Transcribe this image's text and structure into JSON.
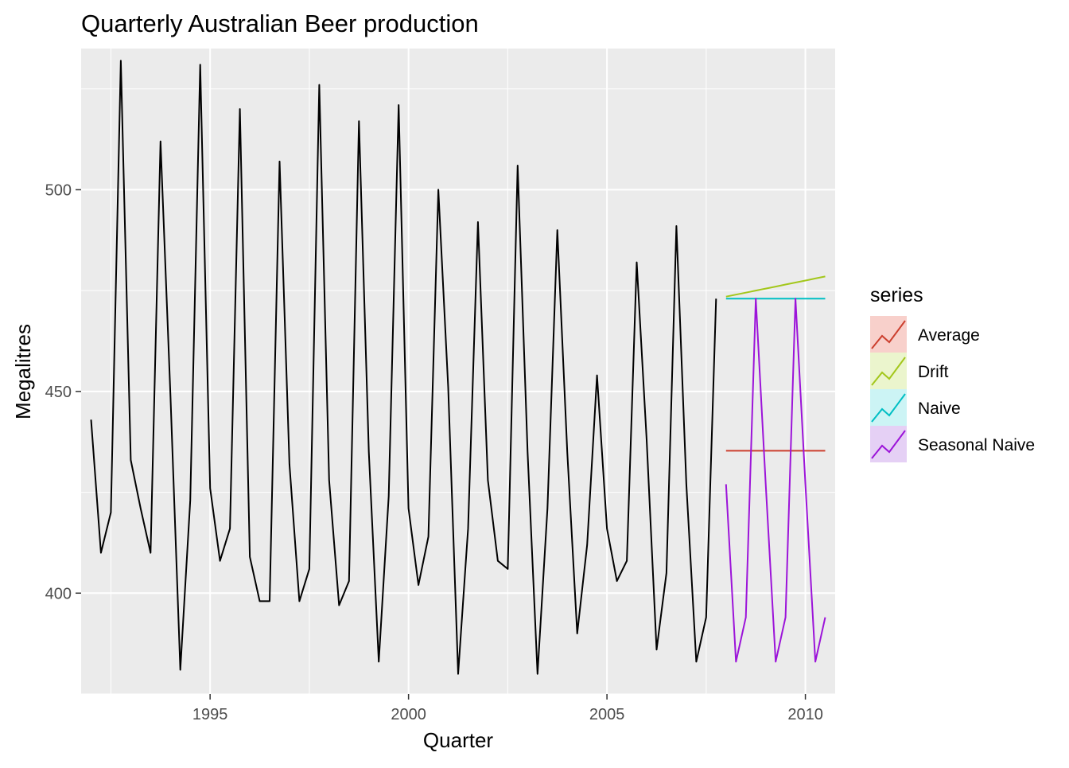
{
  "chart_data": {
    "type": "line",
    "title": "Quarterly Australian Beer production",
    "xlabel": "Quarter",
    "ylabel": "Megalitres",
    "xlim": [
      1991.75,
      2010.75
    ],
    "ylim": [
      375,
      535
    ],
    "x_ticks": [
      1995,
      2000,
      2005,
      2010
    ],
    "y_ticks": [
      400,
      450,
      500
    ],
    "grid": true,
    "background": "#EBEBEB",
    "legend": {
      "title": "series",
      "position": "right",
      "entries": [
        {
          "label": "Average",
          "color": "#CC3F2E",
          "fill": "#F8D0CB"
        },
        {
          "label": "Drift",
          "color": "#A3C71B",
          "fill": "#EBF5CD"
        },
        {
          "label": "Naive",
          "color": "#00BFC4",
          "fill": "#CCF4F5"
        },
        {
          "label": "Seasonal Naive",
          "color": "#9C14D9",
          "fill": "#E5D0F5"
        }
      ]
    },
    "observed": {
      "color": "#000000",
      "start": 1992.0,
      "step": 0.25,
      "values": [
        443,
        410,
        420,
        532,
        433,
        421,
        410,
        512,
        449,
        381,
        423,
        531,
        426,
        408,
        416,
        520,
        409,
        398,
        398,
        507,
        432,
        398,
        406,
        526,
        428,
        397,
        403,
        517,
        435,
        383,
        424,
        521,
        421,
        402,
        414,
        500,
        451,
        380,
        416,
        492,
        428,
        408,
        406,
        506,
        435,
        380,
        421,
        490,
        435,
        390,
        412,
        454,
        416,
        403,
        408,
        482,
        438,
        386,
        405,
        491,
        427,
        383,
        394,
        473
      ]
    },
    "series": [
      {
        "name": "Average",
        "color": "#CC3F2E",
        "start": 2008.0,
        "step": 0.25,
        "values": [
          435.3,
          435.3,
          435.3,
          435.3,
          435.3,
          435.3,
          435.3,
          435.3,
          435.3,
          435.3,
          435.3
        ]
      },
      {
        "name": "Drift",
        "color": "#A3C71B",
        "start": 2008.0,
        "step": 0.25,
        "values": [
          473.5,
          474.0,
          474.5,
          475.0,
          475.5,
          476.0,
          476.5,
          477.0,
          477.5,
          478.0,
          478.5
        ]
      },
      {
        "name": "Naive",
        "color": "#00BFC4",
        "start": 2008.0,
        "step": 0.25,
        "values": [
          473,
          473,
          473,
          473,
          473,
          473,
          473,
          473,
          473,
          473,
          473
        ]
      },
      {
        "name": "Seasonal Naive",
        "color": "#9C14D9",
        "start": 2008.0,
        "step": 0.25,
        "values": [
          427,
          383,
          394,
          473,
          427,
          383,
          394,
          473,
          427,
          383,
          394
        ]
      }
    ]
  }
}
